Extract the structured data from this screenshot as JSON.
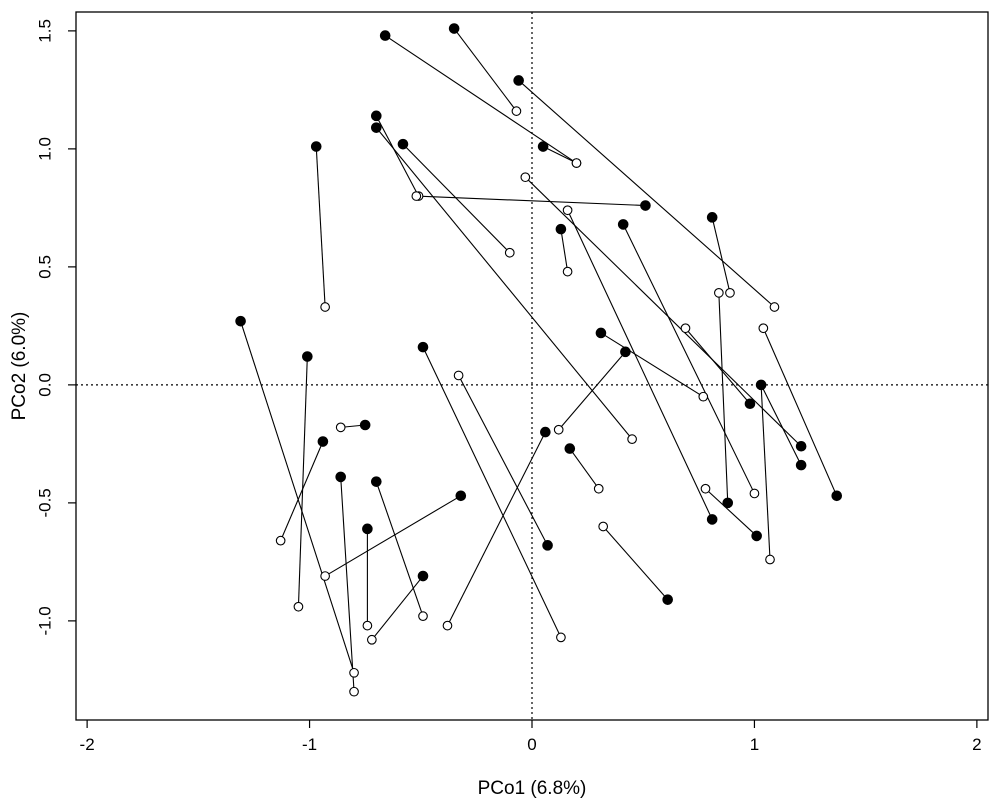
{
  "chart_data": {
    "type": "scatter",
    "title": "",
    "xlabel": "PCo1 (6.8%)",
    "ylabel": "PCo2 (6.0%)",
    "xlim": [
      -2.05,
      2.05
    ],
    "ylim": [
      -1.42,
      1.58
    ],
    "x_ticks": [
      {
        "value": -2,
        "label": "-2"
      },
      {
        "value": -1,
        "label": "-1"
      },
      {
        "value": 0,
        "label": "0"
      },
      {
        "value": 1,
        "label": "1"
      },
      {
        "value": 2,
        "label": "2"
      }
    ],
    "y_ticks": [
      {
        "value": -1.0,
        "label": "-1.0"
      },
      {
        "value": -0.5,
        "label": "-0.5"
      },
      {
        "value": 0.0,
        "label": "0.0"
      },
      {
        "value": 0.5,
        "label": "0.5"
      },
      {
        "value": 1.0,
        "label": "1.0"
      },
      {
        "value": 1.5,
        "label": "1.5"
      }
    ],
    "reference_lines": {
      "x": 0,
      "y": 0,
      "style": "dotted"
    },
    "grid": false,
    "legend": "none",
    "colors": {
      "marker": "#000000",
      "line": "#000000",
      "background": "#ffffff"
    },
    "marker_styles": {
      "filled": "filled circle",
      "open": "open circle"
    },
    "pairs": [
      {
        "filled": [
          -0.35,
          1.51
        ],
        "open": [
          -0.07,
          1.16
        ]
      },
      {
        "filled": [
          -0.66,
          1.48
        ],
        "open": [
          0.2,
          0.94
        ]
      },
      {
        "filled": [
          -0.06,
          1.29
        ],
        "open": [
          1.09,
          0.33
        ]
      },
      {
        "filled": [
          0.05,
          1.01
        ],
        "open": [
          0.2,
          0.94
        ]
      },
      {
        "filled": [
          -0.7,
          1.14
        ],
        "open": [
          -0.51,
          0.8
        ]
      },
      {
        "filled": [
          -0.7,
          1.09
        ],
        "open": [
          0.45,
          -0.23
        ]
      },
      {
        "filled": [
          -0.58,
          1.02
        ],
        "open": [
          -0.1,
          0.56
        ]
      },
      {
        "filled": [
          -0.97,
          1.01
        ],
        "open": [
          -0.93,
          0.33
        ]
      },
      {
        "filled": [
          0.51,
          0.76
        ],
        "open": [
          -0.52,
          0.8
        ]
      },
      {
        "filled": [
          0.13,
          0.66
        ],
        "open": [
          0.16,
          0.48
        ]
      },
      {
        "filled": [
          0.81,
          0.71
        ],
        "open": [
          0.89,
          0.39
        ]
      },
      {
        "filled": [
          0.41,
          0.68
        ],
        "open": [
          1.0,
          -0.46
        ]
      },
      {
        "filled": [
          -1.31,
          0.27
        ],
        "open": [
          -0.8,
          -1.22
        ]
      },
      {
        "filled": [
          -1.01,
          0.12
        ],
        "open": [
          -1.05,
          -0.94
        ]
      },
      {
        "filled": [
          -0.49,
          0.16
        ],
        "open": [
          0.13,
          -1.07
        ]
      },
      {
        "filled": [
          -0.94,
          -0.24
        ],
        "open": [
          -1.13,
          -0.66
        ]
      },
      {
        "filled": [
          -0.75,
          -0.17
        ],
        "open": [
          -0.86,
          -0.18
        ]
      },
      {
        "filled": [
          -0.86,
          -0.39
        ],
        "open": [
          -0.8,
          -1.3
        ]
      },
      {
        "filled": [
          -0.7,
          -0.41
        ],
        "open": [
          -0.49,
          -0.98
        ]
      },
      {
        "filled": [
          -0.74,
          -0.61
        ],
        "open": [
          -0.74,
          -1.02
        ]
      },
      {
        "filled": [
          -0.49,
          -0.81
        ],
        "open": [
          -0.72,
          -1.08
        ]
      },
      {
        "filled": [
          -0.32,
          -0.47
        ],
        "open": [
          -0.93,
          -0.81
        ]
      },
      {
        "filled": [
          0.06,
          -0.2
        ],
        "open": [
          -0.38,
          -1.02
        ]
      },
      {
        "filled": [
          0.07,
          -0.68
        ],
        "open": [
          -0.33,
          0.04
        ]
      },
      {
        "filled": [
          0.17,
          -0.27
        ],
        "open": [
          0.3,
          -0.44
        ]
      },
      {
        "filled": [
          0.31,
          0.22
        ],
        "open": [
          0.77,
          -0.05
        ]
      },
      {
        "filled": [
          0.42,
          0.14
        ],
        "open": [
          0.12,
          -0.19
        ]
      },
      {
        "filled": [
          0.61,
          -0.91
        ],
        "open": [
          0.32,
          -0.6
        ]
      },
      {
        "filled": [
          0.81,
          -0.57
        ],
        "open": [
          0.16,
          0.74
        ]
      },
      {
        "filled": [
          0.88,
          -0.5
        ],
        "open": [
          0.84,
          0.39
        ]
      },
      {
        "filled": [
          1.01,
          -0.64
        ],
        "open": [
          0.78,
          -0.44
        ]
      },
      {
        "filled": [
          1.21,
          -0.26
        ],
        "open": [
          -0.03,
          0.88
        ]
      },
      {
        "filled": [
          1.21,
          -0.34
        ],
        "open": [
          1.03,
          0.0
        ]
      },
      {
        "filled": [
          1.37,
          -0.47
        ],
        "open": [
          1.04,
          0.24
        ]
      },
      {
        "filled": [
          1.03,
          0.0
        ],
        "open": [
          1.07,
          -0.74
        ]
      },
      {
        "filled": [
          0.98,
          -0.08
        ],
        "open": [
          0.69,
          0.24
        ]
      }
    ]
  }
}
